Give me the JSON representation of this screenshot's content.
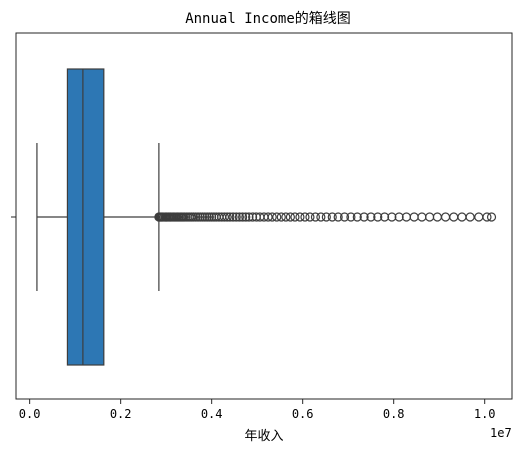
{
  "chart_data": {
    "type": "boxplot",
    "orientation": "horizontal",
    "title": "Annual Income的箱线图",
    "xlabel": "年收入",
    "ylabel": "",
    "x_offset_label": "1e7",
    "xlim": [
      -0.03,
      1.06
    ],
    "x_ticks": [
      0.0,
      0.2,
      0.4,
      0.6,
      0.8,
      1.0
    ],
    "x_tick_labels": [
      "0.0",
      "0.2",
      "0.4",
      "0.6",
      "0.8",
      "1.0"
    ],
    "grid": false,
    "box": {
      "q1": 0.083,
      "median": 0.117,
      "q3": 0.163,
      "whisker_low": 0.016,
      "whisker_high": 0.284,
      "color": "#2d77b4",
      "edge_color": "#3d3d3d"
    },
    "outliers": [
      0.284,
      0.286,
      0.288,
      0.29,
      0.292,
      0.295,
      0.298,
      0.3,
      0.302,
      0.305,
      0.308,
      0.31,
      0.313,
      0.316,
      0.319,
      0.322,
      0.325,
      0.328,
      0.331,
      0.334,
      0.337,
      0.34,
      0.344,
      0.348,
      0.352,
      0.356,
      0.36,
      0.365,
      0.37,
      0.375,
      0.38,
      0.385,
      0.39,
      0.395,
      0.4,
      0.405,
      0.41,
      0.416,
      0.422,
      0.428,
      0.434,
      0.44,
      0.447,
      0.454,
      0.461,
      0.468,
      0.475,
      0.482,
      0.49,
      0.498,
      0.506,
      0.515,
      0.524,
      0.533,
      0.543,
      0.553,
      0.563,
      0.573,
      0.583,
      0.594,
      0.605,
      0.616,
      0.628,
      0.64,
      0.652,
      0.665,
      0.678,
      0.692,
      0.706,
      0.72,
      0.735,
      0.75,
      0.765,
      0.78,
      0.796,
      0.812,
      0.828,
      0.845,
      0.862,
      0.879,
      0.896,
      0.914,
      0.932,
      0.95,
      0.968,
      0.987,
      1.005,
      1.015
    ]
  }
}
